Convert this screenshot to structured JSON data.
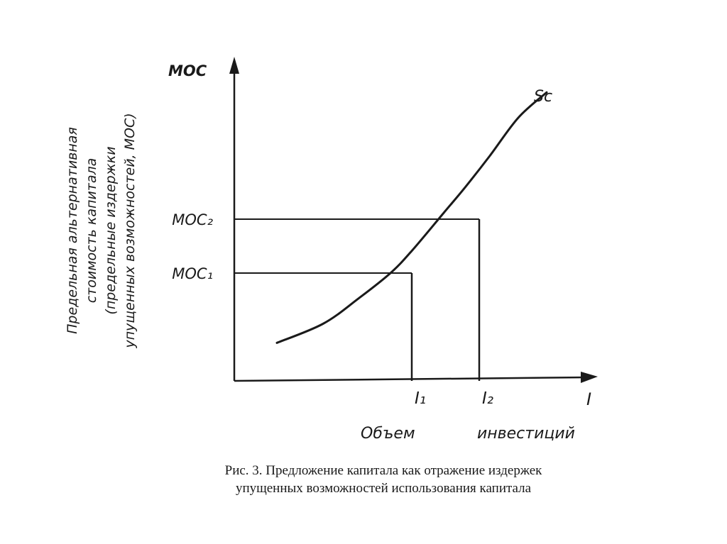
{
  "chart_data": {
    "type": "line",
    "title": "",
    "ylabel_lines": [
      "Предельная альтернативная",
      "стоимость капитала",
      "(предельные издержки",
      "упущенных возможностей, МОС)"
    ],
    "y_axis_symbol": "МОС",
    "x_axis_symbol": "I",
    "xlabel_words": [
      "Объем",
      "инвестиций"
    ],
    "xlim": [
      0,
      10
    ],
    "ylim": [
      0,
      10
    ],
    "grid": false,
    "series": [
      {
        "name": "Sc",
        "x": [
          1.2,
          2.5,
          3.5,
          4.4,
          5.0,
          5.9,
          6.5,
          7.2,
          8.0,
          8.8
        ],
        "y": [
          1.2,
          1.8,
          2.6,
          3.4,
          4.1,
          5.3,
          6.1,
          7.1,
          8.3,
          9.1
        ]
      }
    ],
    "reference_points": [
      {
        "x": 5.0,
        "y": 3.4,
        "x_label": "I₁",
        "y_label": "МОС₁"
      },
      {
        "x": 6.9,
        "y": 5.1,
        "x_label": "I₂",
        "y_label": "МОС₂"
      }
    ],
    "series_label": "Sc"
  },
  "caption": {
    "line1": "Рис. 3. Предложение капитала как отражение издержек",
    "line2": "упущенных возможностей использования капитала"
  }
}
